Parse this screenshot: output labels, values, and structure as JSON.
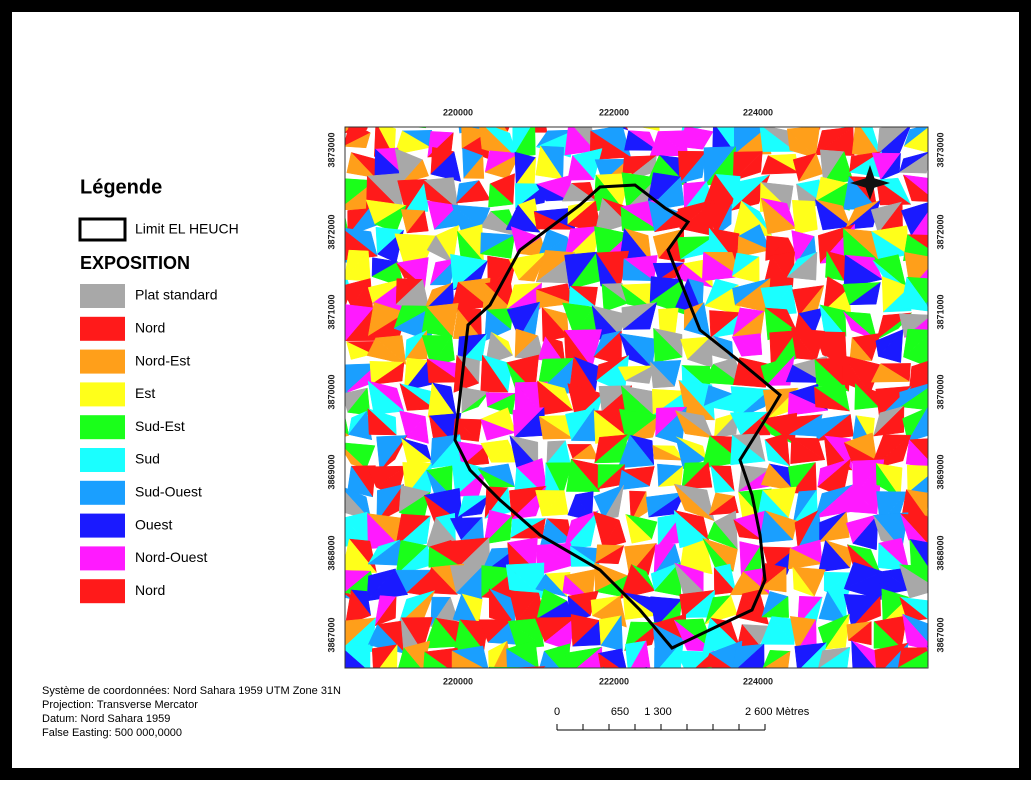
{
  "legend": {
    "title": "Légende",
    "boundary": "Limit EL HEUCH",
    "subtitle": "EXPOSITION",
    "items": [
      {
        "label": "Plat standard",
        "color": "#a8a8a8"
      },
      {
        "label": "Nord",
        "color": "#ff1a1a"
      },
      {
        "label": "Nord-Est",
        "color": "#ff9f1a"
      },
      {
        "label": "Est",
        "color": "#ffff1a"
      },
      {
        "label": "Sud-Est",
        "color": "#1aff1a"
      },
      {
        "label": "Sud",
        "color": "#1affff"
      },
      {
        "label": "Sud-Ouest",
        "color": "#1a9fff"
      },
      {
        "label": "Ouest",
        "color": "#1a1aff"
      },
      {
        "label": "Nord-Ouest",
        "color": "#ff1aff"
      },
      {
        "label": "Nord",
        "color": "#ff1a1a"
      }
    ]
  },
  "map": {
    "x_ticks": [
      "220000",
      "222000",
      "224000"
    ],
    "y_ticks": [
      "3873000",
      "3872000",
      "3871000",
      "3870000",
      "3869000",
      "3868000",
      "3867000"
    ]
  },
  "notes": [
    "Système de coordonnées: Nord Sahara 1959 UTM Zone 31N",
    "Projection: Transverse Mercator",
    "Datum: Nord Sahara 1959",
    "False Easting: 500 000,0000"
  ],
  "scale_bar": {
    "labels": [
      "0",
      "650",
      "1 300",
      "2 600 Mètres"
    ]
  }
}
